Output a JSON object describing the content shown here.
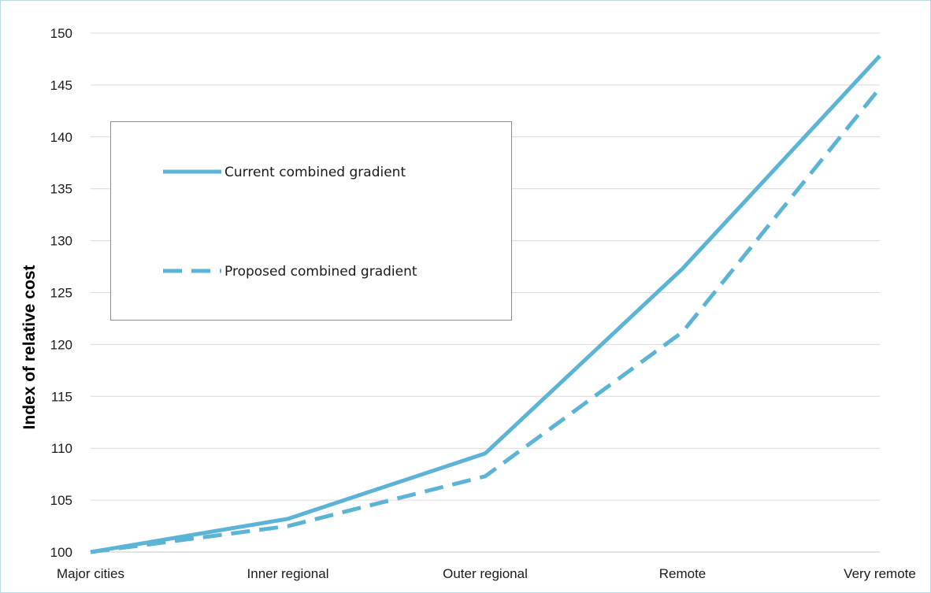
{
  "chart_data": {
    "type": "line",
    "title": "",
    "xlabel": "",
    "ylabel": "Index of relative cost",
    "categories": [
      "Major cities",
      "Inner regional",
      "Outer regional",
      "Remote",
      "Very remote"
    ],
    "ylim": [
      100,
      150
    ],
    "yticks": [
      100,
      105,
      110,
      115,
      120,
      125,
      130,
      135,
      140,
      145,
      150
    ],
    "grid": true,
    "legend_position": "upper-left",
    "series": [
      {
        "name": "Current combined gradient",
        "style": "solid",
        "color": "#5BB3D6",
        "values": [
          100,
          103.2,
          109.5,
          127.3,
          147.8
        ]
      },
      {
        "name": "Proposed combined gradient",
        "style": "dashed",
        "color": "#5BB3D6",
        "values": [
          100,
          102.5,
          107.3,
          121.2,
          144.7
        ]
      }
    ]
  }
}
